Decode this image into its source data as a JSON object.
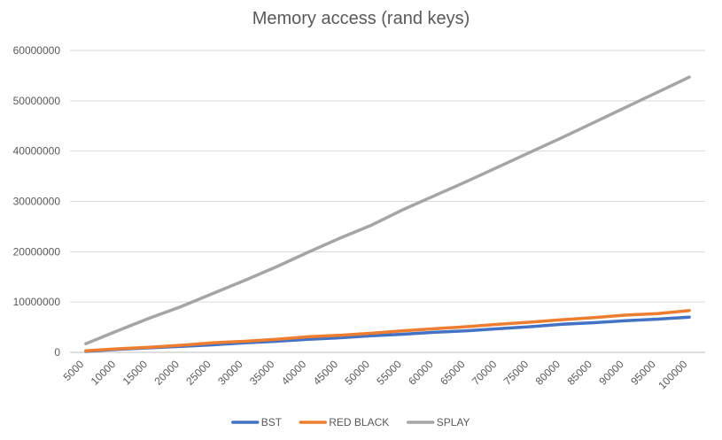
{
  "chart_data": {
    "type": "line",
    "title": "Memory access (rand keys)",
    "xlabel": "",
    "ylabel": "",
    "categories": [
      "5000",
      "10000",
      "15000",
      "20000",
      "25000",
      "30000",
      "35000",
      "40000",
      "45000",
      "50000",
      "55000",
      "60000",
      "65000",
      "70000",
      "75000",
      "80000",
      "85000",
      "90000",
      "95000",
      "100000"
    ],
    "ylim": [
      0,
      60000000
    ],
    "yticks": [
      "0",
      "10000000",
      "20000000",
      "30000000",
      "40000000",
      "50000000",
      "60000000"
    ],
    "ytick_values": [
      0,
      10000000,
      20000000,
      30000000,
      40000000,
      50000000,
      60000000
    ],
    "grid": true,
    "legend_position": "bottom",
    "series": [
      {
        "name": "BST",
        "color": "#4472C4",
        "values": [
          200000,
          600000,
          900000,
          1200000,
          1500000,
          1900000,
          2200000,
          2600000,
          2900000,
          3300000,
          3600000,
          4000000,
          4300000,
          4700000,
          5100000,
          5600000,
          5900000,
          6300000,
          6600000,
          7000000
        ]
      },
      {
        "name": "RED BLACK",
        "color": "#ED7D31",
        "values": [
          300000,
          700000,
          1000000,
          1400000,
          1900000,
          2200000,
          2600000,
          3100000,
          3400000,
          3800000,
          4300000,
          4700000,
          5100000,
          5600000,
          6000000,
          6500000,
          6900000,
          7400000,
          7700000,
          8300000
        ]
      },
      {
        "name": "SPLAY",
        "color": "#A5A5A5",
        "values": [
          1700000,
          4300000,
          6800000,
          9100000,
          11700000,
          14300000,
          17000000,
          19900000,
          22700000,
          25300000,
          28400000,
          31200000,
          34000000,
          36900000,
          39800000,
          42700000,
          45700000,
          48700000,
          51700000,
          54700000
        ]
      }
    ]
  }
}
